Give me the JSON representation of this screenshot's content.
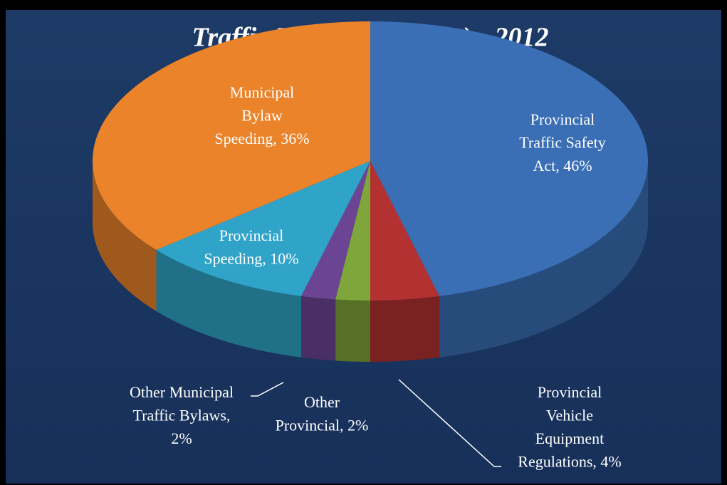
{
  "chart_data": {
    "type": "pie",
    "title": "Traffic Tickets (Charges) - 2012",
    "labels": [
      [
        "Provincial",
        "Traffic Safety",
        "Act, 46%"
      ],
      [
        "Provincial",
        "Vehicle",
        "Equipment",
        "Regulations, 4%"
      ],
      [
        "Other",
        "Provincial, 2%"
      ],
      [
        "Other Municipal",
        "Traffic Bylaws,",
        "2%"
      ],
      [
        "Provincial",
        "Speeding, 10%"
      ],
      [
        "Municipal",
        "Bylaw",
        "Speeding, 36%"
      ]
    ],
    "values": [
      46,
      4,
      2,
      2,
      10,
      36
    ],
    "colors": [
      "#3a6eb5",
      "#b33131",
      "#7ea63a",
      "#6b4594",
      "#2fa4c8",
      "#ea832a"
    ]
  }
}
